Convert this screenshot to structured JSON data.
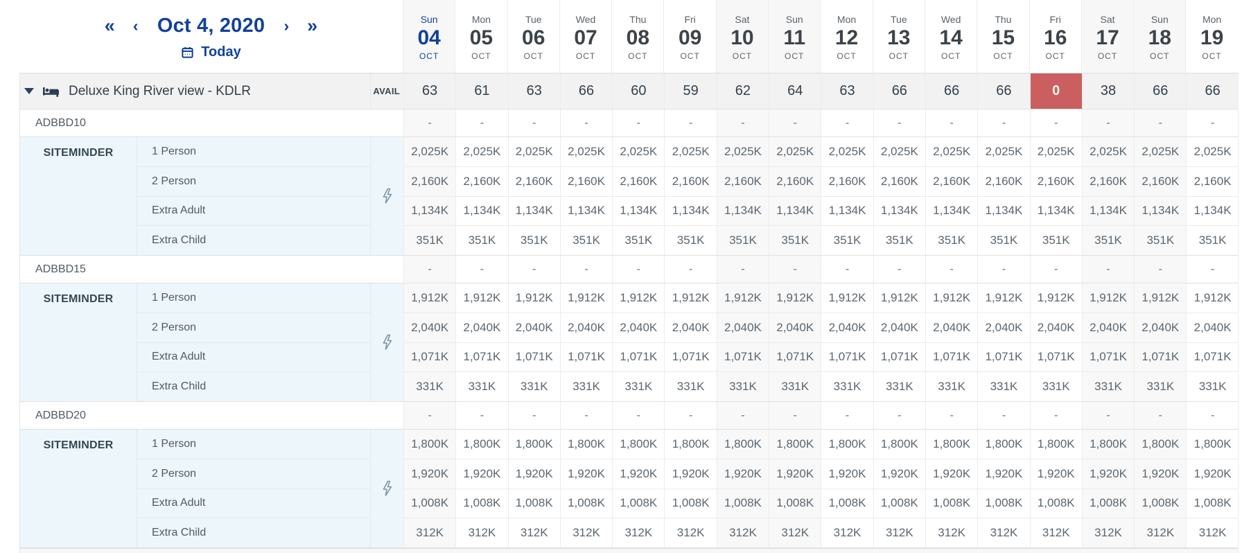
{
  "nav": {
    "first_label": "«",
    "prev_label": "‹",
    "date_label": "Oct 4, 2020",
    "next_label": "›",
    "last_label": "»",
    "today_label": "Today"
  },
  "calendar": {
    "days": [
      {
        "dow": "Sun",
        "num": "04",
        "month": "OCT",
        "weekend": true,
        "today": true
      },
      {
        "dow": "Mon",
        "num": "05",
        "month": "OCT",
        "weekend": false,
        "today": false
      },
      {
        "dow": "Tue",
        "num": "06",
        "month": "OCT",
        "weekend": false,
        "today": false
      },
      {
        "dow": "Wed",
        "num": "07",
        "month": "OCT",
        "weekend": false,
        "today": false
      },
      {
        "dow": "Thu",
        "num": "08",
        "month": "OCT",
        "weekend": false,
        "today": false
      },
      {
        "dow": "Fri",
        "num": "09",
        "month": "OCT",
        "weekend": false,
        "today": false
      },
      {
        "dow": "Sat",
        "num": "10",
        "month": "OCT",
        "weekend": true,
        "today": false
      },
      {
        "dow": "Sun",
        "num": "11",
        "month": "OCT",
        "weekend": true,
        "today": false
      },
      {
        "dow": "Mon",
        "num": "12",
        "month": "OCT",
        "weekend": false,
        "today": false
      },
      {
        "dow": "Tue",
        "num": "13",
        "month": "OCT",
        "weekend": false,
        "today": false
      },
      {
        "dow": "Wed",
        "num": "14",
        "month": "OCT",
        "weekend": false,
        "today": false
      },
      {
        "dow": "Thu",
        "num": "15",
        "month": "OCT",
        "weekend": false,
        "today": false
      },
      {
        "dow": "Fri",
        "num": "16",
        "month": "OCT",
        "weekend": false,
        "today": false
      },
      {
        "dow": "Sat",
        "num": "17",
        "month": "OCT",
        "weekend": true,
        "today": false
      },
      {
        "dow": "Sun",
        "num": "18",
        "month": "OCT",
        "weekend": true,
        "today": false
      },
      {
        "dow": "Mon",
        "num": "19",
        "month": "OCT",
        "weekend": false,
        "today": false
      }
    ]
  },
  "room": {
    "name": "Deluxe King River view - KDLR",
    "avail_label": "AVAIL",
    "availability": [
      "63",
      "61",
      "63",
      "66",
      "60",
      "59",
      "62",
      "64",
      "63",
      "66",
      "66",
      "66",
      "0",
      "38",
      "66",
      "66"
    ],
    "sold_out_index": 12
  },
  "empty_value": "-",
  "rate_plans": [
    {
      "code": "ADBBD10",
      "channel": "SITEMINDER",
      "occupancies": [
        {
          "label": "1 Person",
          "rate": "2,025K"
        },
        {
          "label": "2 Person",
          "rate": "2,160K"
        },
        {
          "label": "Extra Adult",
          "rate": "1,134K"
        },
        {
          "label": "Extra Child",
          "rate": "351K"
        }
      ]
    },
    {
      "code": "ADBBD15",
      "channel": "SITEMINDER",
      "occupancies": [
        {
          "label": "1 Person",
          "rate": "1,912K"
        },
        {
          "label": "2 Person",
          "rate": "2,040K"
        },
        {
          "label": "Extra Adult",
          "rate": "1,071K"
        },
        {
          "label": "Extra Child",
          "rate": "331K"
        }
      ]
    },
    {
      "code": "ADBBD20",
      "channel": "SITEMINDER",
      "occupancies": [
        {
          "label": "1 Person",
          "rate": "1,800K"
        },
        {
          "label": "2 Person",
          "rate": "1,920K"
        },
        {
          "label": "Extra Adult",
          "rate": "1,008K"
        },
        {
          "label": "Extra Child",
          "rate": "312K"
        }
      ]
    }
  ],
  "colors": {
    "accent_blue": "#11419d",
    "sold_out_red": "#cb5f5f",
    "channel_panel": "#edf6fb"
  }
}
